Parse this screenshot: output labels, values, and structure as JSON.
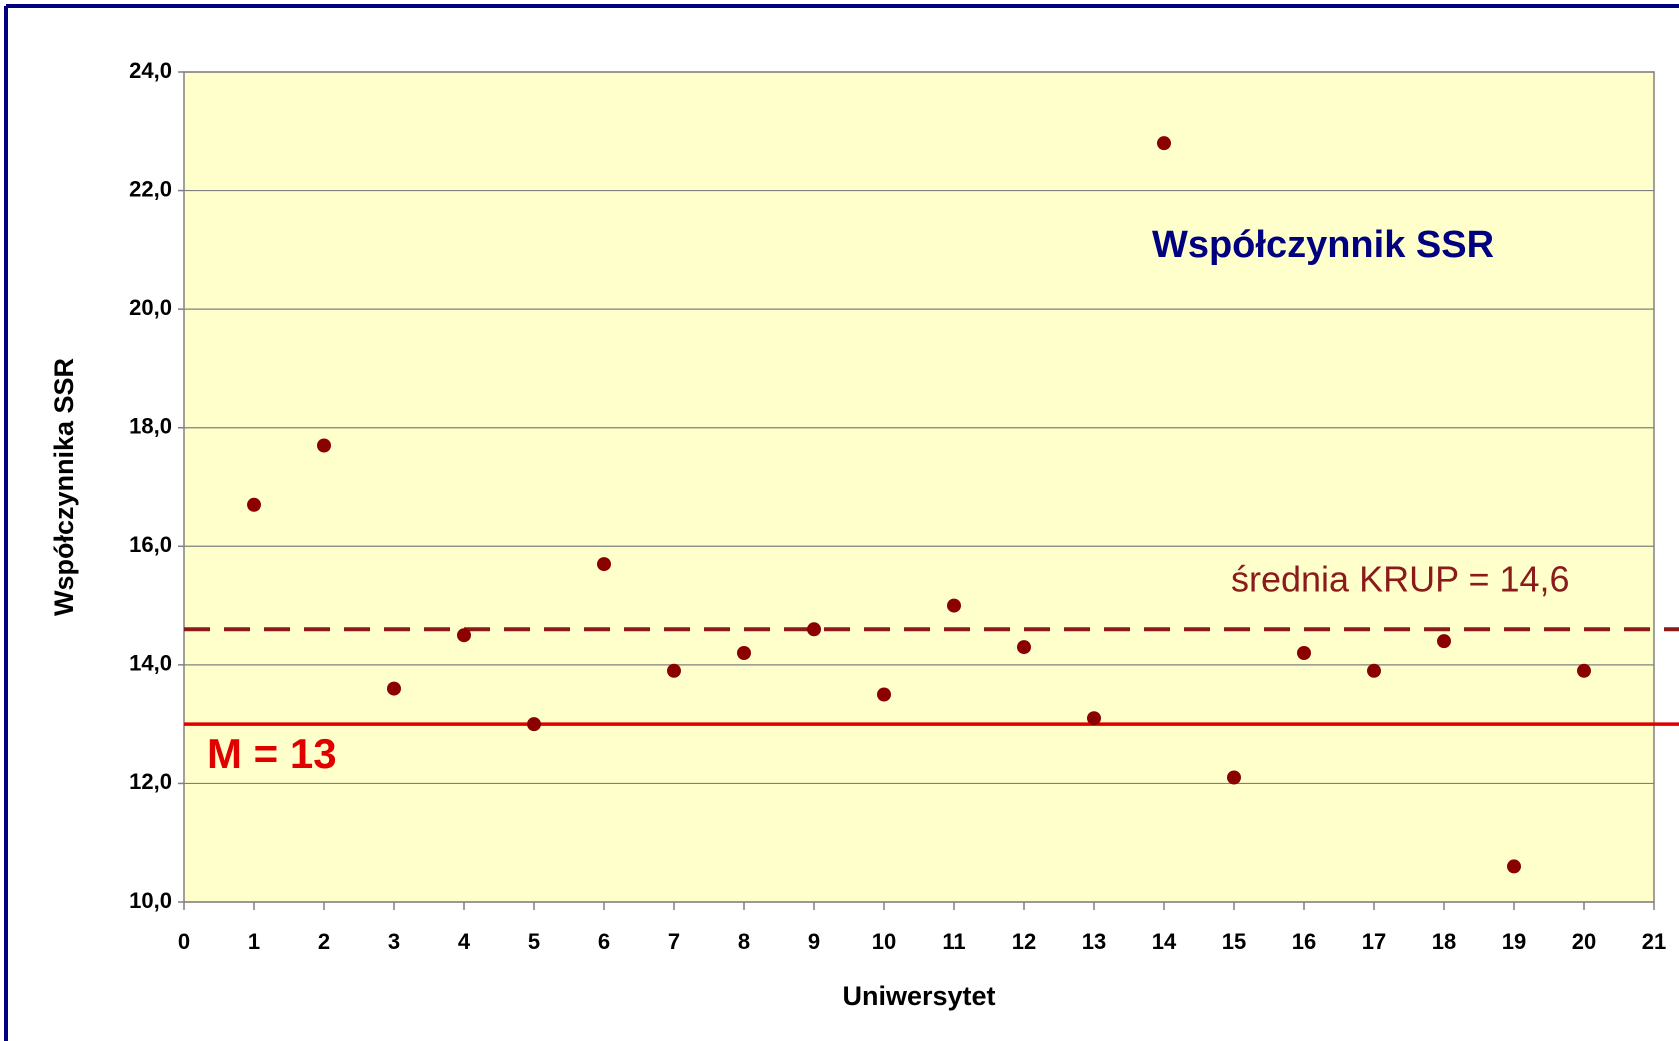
{
  "chart_data": {
    "type": "scatter",
    "title": "Współczynnik SSR",
    "x_label": "Uniwersytet",
    "y_label": "Współczynnika SSR",
    "x": [
      1,
      2,
      3,
      4,
      5,
      6,
      7,
      8,
      9,
      10,
      11,
      12,
      13,
      14,
      15,
      16,
      17,
      18,
      19,
      20
    ],
    "series": [
      {
        "color": "#8b0000",
        "values": [
          16.7,
          17.7,
          13.6,
          14.5,
          13.0,
          15.7,
          13.9,
          14.2,
          14.6,
          13.5,
          15.0,
          14.3,
          13.1,
          22.8,
          12.1,
          14.2,
          13.9,
          14.4,
          10.6,
          13.9
        ]
      }
    ],
    "xlim": [
      0,
      21
    ],
    "ylim": [
      10,
      24
    ],
    "xticks": [
      0,
      1,
      2,
      3,
      4,
      5,
      6,
      7,
      8,
      9,
      10,
      11,
      12,
      13,
      14,
      15,
      16,
      17,
      18,
      19,
      20,
      21
    ],
    "yticks": [
      {
        "value": 10,
        "label": "10,0"
      },
      {
        "value": 12,
        "label": "12,0"
      },
      {
        "value": 14,
        "label": "14,0"
      },
      {
        "value": 16,
        "label": "16,0"
      },
      {
        "value": 18,
        "label": "18,0"
      },
      {
        "value": 20,
        "label": "20,0"
      },
      {
        "value": 22,
        "label": "22,0"
      },
      {
        "value": 24,
        "label": "24,0"
      }
    ],
    "grid": true,
    "reference_lines": [
      {
        "value": 14.6,
        "label": "średnia KRUP = 14,6",
        "color": "#8b1a1a",
        "style": "dashed"
      },
      {
        "value": 13,
        "label": "M = 13",
        "color": "#e00000",
        "style": "solid"
      }
    ]
  }
}
